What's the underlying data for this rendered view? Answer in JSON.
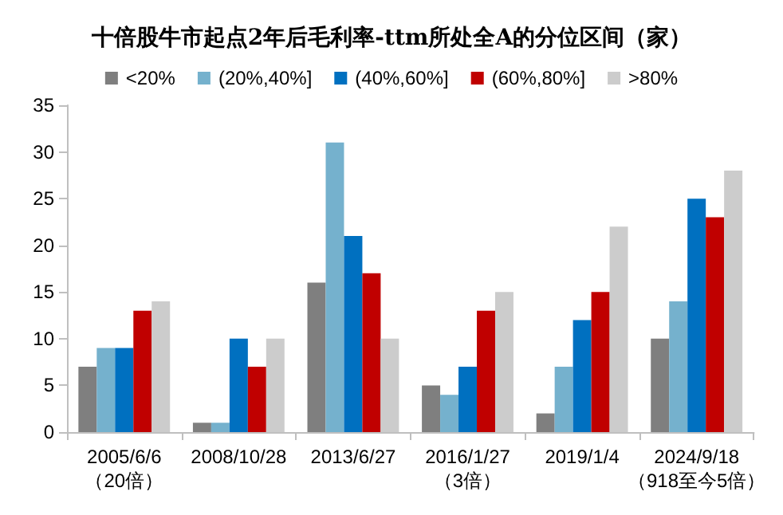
{
  "chart_data": {
    "type": "bar",
    "title": "十倍股牛市起点2年后毛利率-ttm所处全A的分位区间（家）",
    "categories": [
      "2005/6/6\n（20倍）",
      "2008/10/28",
      "2013/6/27",
      "2016/1/27\n（3倍）",
      "2019/1/4",
      "2024/9/18\n（918至今5倍）"
    ],
    "series": [
      {
        "name": "<20%",
        "color": "#7f7f7f",
        "values": [
          7,
          1,
          16,
          5,
          2,
          10
        ]
      },
      {
        "name": "(20%,40%]",
        "color": "#75b1cd",
        "values": [
          9,
          1,
          31,
          4,
          7,
          14
        ]
      },
      {
        "name": "(40%,60%]",
        "color": "#0070c0",
        "values": [
          9,
          10,
          21,
          7,
          12,
          25
        ]
      },
      {
        "name": "(60%,80%]",
        "color": "#c00000",
        "values": [
          13,
          7,
          17,
          13,
          15,
          23
        ]
      },
      {
        "name": ">80%",
        "color": "#cccccc",
        "values": [
          14,
          10,
          10,
          15,
          22,
          28
        ]
      }
    ],
    "ylim": [
      0,
      35
    ],
    "yticks": [
      0,
      5,
      10,
      15,
      20,
      25,
      30,
      35
    ],
    "grid": false,
    "legend": "top"
  }
}
